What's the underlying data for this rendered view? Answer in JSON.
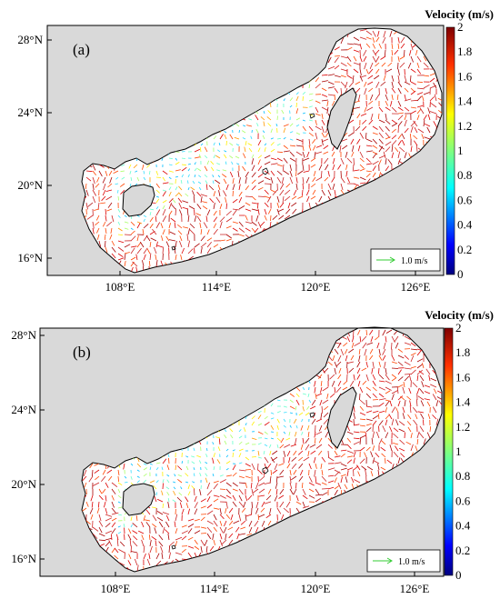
{
  "panels": [
    {
      "label": "(a)",
      "colorbar": {
        "title": "Velocity (m/s)",
        "ticks": [
          "0",
          "0.2",
          "0.4",
          "0.6",
          "0.8",
          "1",
          "1.2",
          "1.4",
          "1.6",
          "1.8",
          "2"
        ],
        "colors": [
          "#00007f",
          "#0000ff",
          "#007fff",
          "#00ffff",
          "#7fff7f",
          "#ffff00",
          "#ff7f00",
          "#ff0000",
          "#7f0000"
        ]
      },
      "x_ticks": [
        "108°E",
        "114°E",
        "120°E",
        "126°E"
      ],
      "y_ticks": [
        "16°N",
        "20°N",
        "24°N",
        "28°N"
      ],
      "scale_label": "1.0 m/s"
    },
    {
      "label": "(b)",
      "colorbar": {
        "title": "Velocity (m/s)",
        "ticks": [
          "0",
          "0.2",
          "0.4",
          "0.6",
          "0.8",
          "1",
          "1.2",
          "1.4",
          "1.6",
          "1.8",
          "2"
        ],
        "colors": [
          "#00007f",
          "#0000ff",
          "#007fff",
          "#00ffff",
          "#7fff7f",
          "#ffff00",
          "#ff7f00",
          "#ff0000",
          "#7f0000"
        ]
      },
      "x_ticks": [
        "108°E",
        "114°E",
        "120°E",
        "126°E"
      ],
      "y_ticks": [
        "16°N",
        "20°N",
        "24°N",
        "28°N"
      ],
      "scale_label": "1.0 m/s"
    }
  ],
  "colors": {
    "land": "#d9d9d9",
    "coast": "#000000",
    "scale_arrow": "#33cc33"
  }
}
